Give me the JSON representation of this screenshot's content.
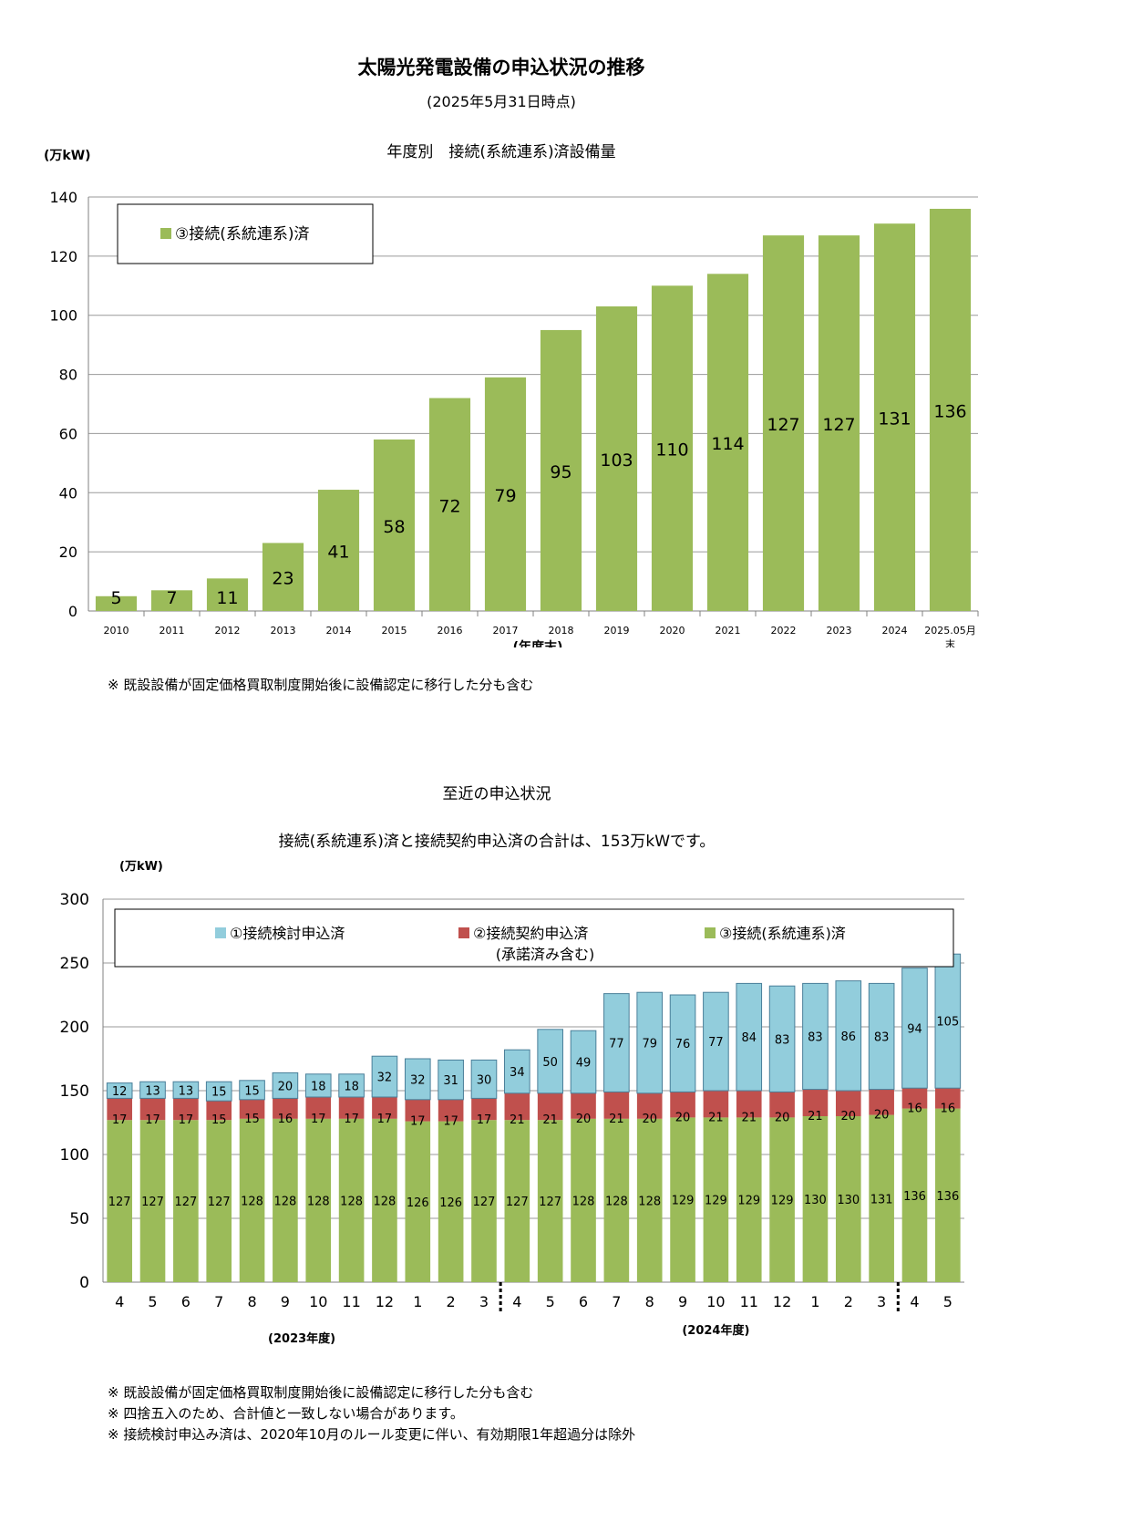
{
  "page": {
    "title": "太陽光発電設備の申込状況の推移",
    "subtitle": "(2025年5月31日時点)",
    "section2_heading": "至近の申込状況",
    "section2_title": "接続(系統連系)済と接続契約申込済の合計は、153万kWです。"
  },
  "colors": {
    "green": "#9BBB59",
    "red": "#C0504D",
    "blue": "#92CDDC"
  },
  "chart_data": [
    {
      "type": "bar",
      "title": "年度別　接続(系統連系)済設備量",
      "ylabel": "(万kW)",
      "xlabel": "(年度末)",
      "ylim": [
        0,
        140
      ],
      "yticks": [
        0,
        20,
        40,
        60,
        80,
        100,
        120,
        140
      ],
      "grid": true,
      "legend_position": "top-left",
      "categories": [
        "2010",
        "2011",
        "2012",
        "2013",
        "2014",
        "2015",
        "2016",
        "2017",
        "2018",
        "2019",
        "2020",
        "2021",
        "2022",
        "2023",
        "2024",
        "2025.05月末"
      ],
      "series": [
        {
          "name": "③接続(系統連系)済",
          "color": "#9BBB59",
          "values": [
            5,
            7,
            11,
            23,
            41,
            58,
            72,
            79,
            95,
            103,
            110,
            114,
            127,
            127,
            131,
            136
          ]
        }
      ],
      "note": "※ 既設設備が固定価格買取制度開始後に設備認定に移行した分も含む"
    },
    {
      "type": "bar",
      "stacked": true,
      "ylabel": "(万kW)",
      "ylim": [
        0,
        300
      ],
      "yticks": [
        0,
        50,
        100,
        150,
        200,
        250,
        300
      ],
      "grid": true,
      "legend_position": "top",
      "categories": [
        "4",
        "5",
        "6",
        "7",
        "8",
        "9",
        "10",
        "11",
        "12",
        "1",
        "2",
        "3",
        "4",
        "5",
        "6",
        "7",
        "8",
        "9",
        "10",
        "11",
        "12",
        "1",
        "2",
        "3",
        "4",
        "5"
      ],
      "groups": [
        {
          "label": "(2023年度)"
        },
        {
          "label": "(2024年度)"
        }
      ],
      "series": [
        {
          "name": "③接続(系統連系)済",
          "color": "#9BBB59",
          "values": [
            127,
            127,
            127,
            127,
            128,
            128,
            128,
            128,
            128,
            126,
            126,
            127,
            127,
            127,
            128,
            128,
            128,
            129,
            129,
            129,
            129,
            130,
            130,
            131,
            136,
            136
          ]
        },
        {
          "name": "②接続契約申込済",
          "name_line2": "(承諾済み含む)",
          "color": "#C0504D",
          "values": [
            17,
            17,
            17,
            15,
            15,
            16,
            17,
            17,
            17,
            17,
            17,
            17,
            21,
            21,
            20,
            21,
            20,
            20,
            21,
            21,
            20,
            21,
            20,
            20,
            16,
            16
          ]
        },
        {
          "name": "①接続検討申込済",
          "color": "#92CDDC",
          "values": [
            12,
            13,
            13,
            15,
            15,
            20,
            18,
            18,
            32,
            32,
            31,
            30,
            34,
            50,
            49,
            77,
            79,
            76,
            77,
            84,
            83,
            83,
            86,
            83,
            94,
            105
          ]
        }
      ],
      "notes": [
        "※ 既設設備が固定価格買取制度開始後に設備認定に移行した分も含む",
        "※ 四捨五入のため、合計値と一致しない場合があります。",
        "※ 接続検討申込み済は、2020年10月のルール変更に伴い、有効期限1年超過分は除外"
      ]
    }
  ]
}
